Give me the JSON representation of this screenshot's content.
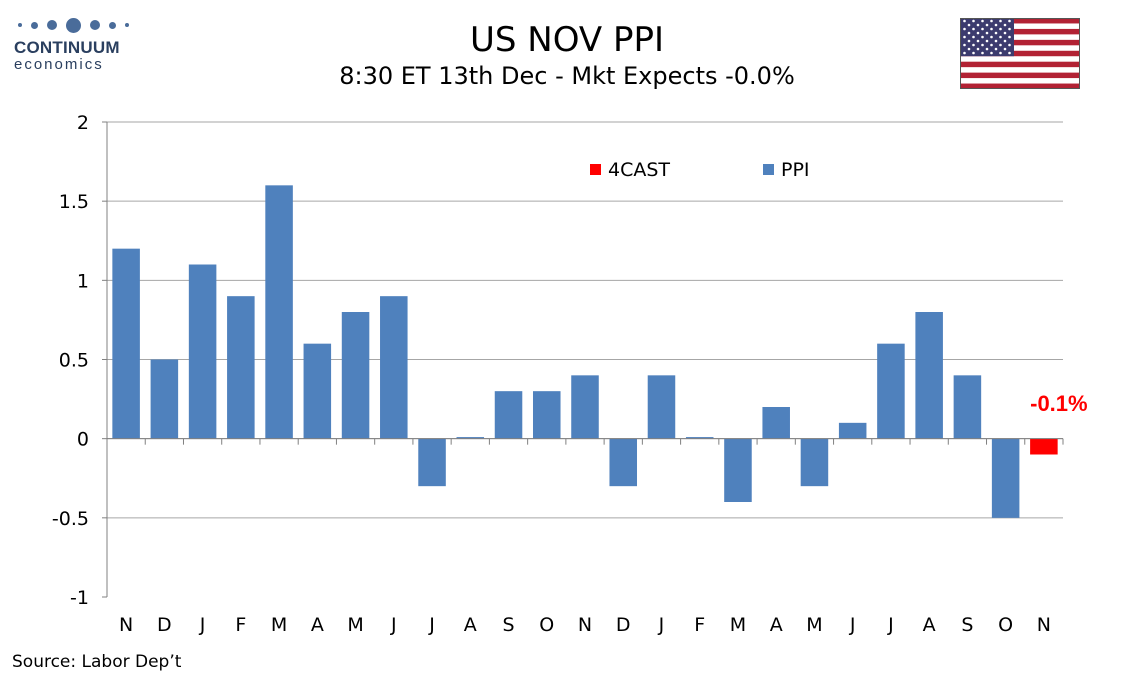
{
  "logo": {
    "name": "CONTINUUM",
    "sub": "economics"
  },
  "header": {
    "title": "US NOV PPI",
    "subtitle": "8:30 ET 13th Dec - Mkt Expects -0.0%"
  },
  "source": "Source: Labor Dep’t",
  "colors": {
    "ppi": "#4f81bd",
    "forecast": "#ff0000"
  },
  "chart_data": {
    "type": "bar",
    "categories": [
      "N",
      "D",
      "J",
      "F",
      "M",
      "A",
      "M",
      "J",
      "J",
      "A",
      "S",
      "O",
      "N",
      "D",
      "J",
      "F",
      "M",
      "A",
      "M",
      "J",
      "J",
      "A",
      "S",
      "O",
      "N"
    ],
    "series": [
      {
        "name": "PPI",
        "values": [
          1.2,
          0.5,
          1.1,
          0.9,
          1.6,
          0.6,
          0.8,
          0.9,
          -0.3,
          0.01,
          0.3,
          0.3,
          0.4,
          -0.3,
          0.4,
          0.01,
          -0.4,
          0.2,
          -0.3,
          0.1,
          0.6,
          0.8,
          0.4,
          -0.5,
          null
        ]
      },
      {
        "name": "4CAST",
        "values": [
          null,
          null,
          null,
          null,
          null,
          null,
          null,
          null,
          null,
          null,
          null,
          null,
          null,
          null,
          null,
          null,
          null,
          null,
          null,
          null,
          null,
          null,
          null,
          null,
          -0.1
        ]
      }
    ],
    "y_ticks": [
      "2",
      "1.5",
      "1",
      "0.5",
      "0",
      "-0.5",
      "-1"
    ],
    "ylim": [
      -1,
      2
    ],
    "grid": true,
    "legend_position": "top-right",
    "annotation": "-0.1%"
  }
}
